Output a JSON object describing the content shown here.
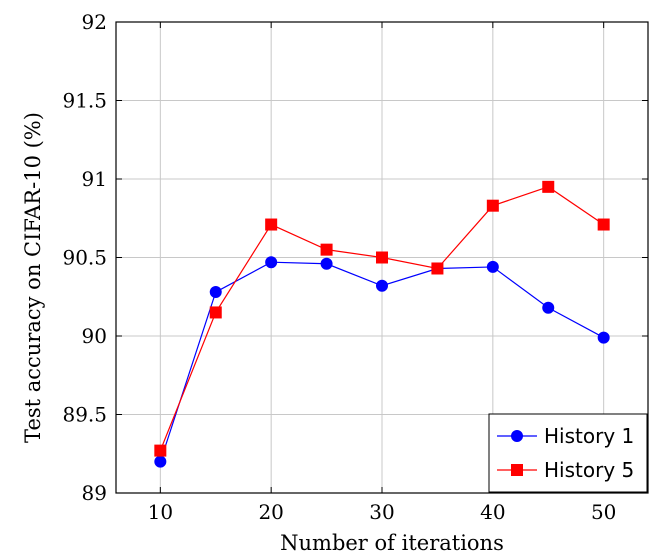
{
  "chart_data": {
    "type": "line",
    "title": "",
    "xlabel": "Number of iterations",
    "ylabel": "Test accuracy on CIFAR-10 (%)",
    "xlim": [
      6,
      54
    ],
    "ylim": [
      89,
      92
    ],
    "xticks": [
      10,
      20,
      30,
      40,
      50
    ],
    "yticks": [
      89,
      89.5,
      90,
      90.5,
      91,
      91.5,
      92
    ],
    "ytick_labels": [
      "89",
      "89.5",
      "90",
      "90.5",
      "91",
      "91.5",
      "92"
    ],
    "grid": true,
    "legend_position": "bottom-right",
    "x": [
      10,
      15,
      20,
      25,
      30,
      35,
      40,
      45,
      50
    ],
    "series": [
      {
        "name": "History 1",
        "color": "#0000ff",
        "marker": "circle",
        "values": [
          89.2,
          90.28,
          90.47,
          90.46,
          90.32,
          90.43,
          90.44,
          90.18,
          89.99
        ]
      },
      {
        "name": "History 5",
        "color": "#ff0000",
        "marker": "square",
        "values": [
          89.27,
          90.15,
          90.71,
          90.55,
          90.5,
          90.43,
          90.83,
          90.95,
          90.71
        ]
      }
    ]
  }
}
